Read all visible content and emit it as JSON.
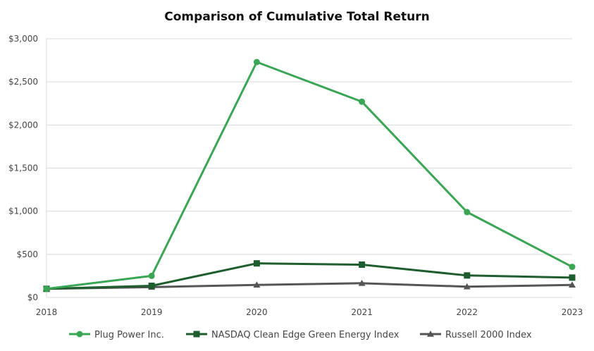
{
  "chart_data": {
    "type": "line",
    "title": "Comparison of Cumulative Total Return",
    "xlabel": "",
    "ylabel": "",
    "categories": [
      "2018",
      "2019",
      "2020",
      "2021",
      "2022",
      "2023"
    ],
    "ylim": [
      0,
      3000
    ],
    "yticks": [
      0,
      500,
      1000,
      1500,
      2000,
      2500,
      3000
    ],
    "ytick_labels": [
      "$0",
      "$500",
      "$1,000",
      "$1,500",
      "$2,000",
      "$2,500",
      "$3,000"
    ],
    "grid": true,
    "legend_position": "bottom",
    "series": [
      {
        "name": "Plug Power Inc.",
        "values": [
          100,
          250,
          2730,
          2270,
          990,
          355
        ],
        "color": "#3aa655",
        "marker": "circle"
      },
      {
        "name": "NASDAQ Clean Edge Green Energy Index",
        "values": [
          100,
          135,
          395,
          380,
          255,
          230
        ],
        "color": "#1e5e2e",
        "marker": "square"
      },
      {
        "name": "Russell 2000 Index",
        "values": [
          100,
          120,
          145,
          165,
          125,
          145
        ],
        "color": "#555555",
        "marker": "triangle"
      }
    ]
  }
}
